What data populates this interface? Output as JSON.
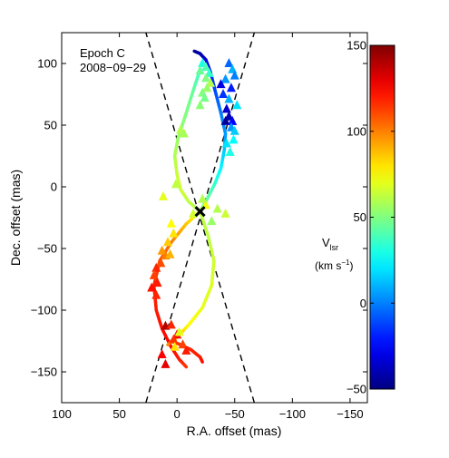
{
  "chart_data": {
    "type": "scatter",
    "annotation_lines": [
      "Epoch C",
      "2008−09−29"
    ],
    "xlabel": "R.A. offset (mas)",
    "ylabel": "Dec. offset (mas)",
    "x_axis_inverted": true,
    "xlim": [
      100,
      -165
    ],
    "ylim": [
      -175,
      125
    ],
    "xticks": [
      100,
      50,
      0,
      -50,
      -100,
      -150
    ],
    "xtick_labels": [
      "100",
      "50",
      "0",
      "−50",
      "−100",
      "−150"
    ],
    "yticks": [
      100,
      50,
      0,
      -50,
      -100,
      -150
    ],
    "ytick_labels": [
      "100",
      "50",
      "0",
      "−50",
      "−100",
      "−150"
    ],
    "grid": false,
    "colorbar": {
      "label_main": "V",
      "label_sub": "lsr",
      "unit_main": "(km s",
      "unit_exp": "−1",
      "unit_close": ")",
      "range": [
        -50,
        150
      ],
      "ticks": [
        150,
        100,
        50,
        0,
        -50
      ],
      "tick_labels": [
        "150",
        "100",
        "50",
        "0",
        "−50"
      ],
      "colormap": "jet"
    },
    "center": {
      "x": -20,
      "y": -20
    },
    "cone_lines": [
      {
        "x1": 27,
        "y1": -175,
        "x2": -67,
        "y2": 125
      },
      {
        "x1": -67,
        "y1": -175,
        "x2": 27,
        "y2": 125
      }
    ],
    "jet_tracks": [
      {
        "name": "track-blue-upper",
        "points": [
          {
            "x": -42,
            "y": 43,
            "v": 5
          },
          {
            "x": -38,
            "y": 60,
            "v": 0
          },
          {
            "x": -33,
            "y": 78,
            "v": -10
          },
          {
            "x": -29,
            "y": 93,
            "v": -20
          },
          {
            "x": -25,
            "y": 103,
            "v": -30
          },
          {
            "x": -20,
            "y": 108,
            "v": -40
          },
          {
            "x": -15,
            "y": 110,
            "v": -45
          }
        ]
      },
      {
        "name": "track-cyan-lower-right",
        "points": [
          {
            "x": -20,
            "y": -20,
            "v": 55
          },
          {
            "x": -26,
            "y": -10,
            "v": 45
          },
          {
            "x": -33,
            "y": 3,
            "v": 35
          },
          {
            "x": -38,
            "y": 15,
            "v": 25
          },
          {
            "x": -41,
            "y": 30,
            "v": 15
          },
          {
            "x": -42,
            "y": 43,
            "v": 5
          }
        ]
      },
      {
        "name": "track-left-upper",
        "points": [
          {
            "x": -20,
            "y": -20,
            "v": 60
          },
          {
            "x": -10,
            "y": -12,
            "v": 62
          },
          {
            "x": -3,
            "y": -2,
            "v": 65
          },
          {
            "x": 0,
            "y": 10,
            "v": 65
          },
          {
            "x": 2,
            "y": 25,
            "v": 60
          },
          {
            "x": -1,
            "y": 40,
            "v": 55
          },
          {
            "x": -8,
            "y": 60,
            "v": 50
          },
          {
            "x": -14,
            "y": 78,
            "v": 45
          },
          {
            "x": -19,
            "y": 92,
            "v": 38
          }
        ]
      },
      {
        "name": "track-red-lower-left",
        "points": [
          {
            "x": -20,
            "y": -20,
            "v": 70
          },
          {
            "x": -8,
            "y": -30,
            "v": 85
          },
          {
            "x": 5,
            "y": -45,
            "v": 100
          },
          {
            "x": 15,
            "y": -60,
            "v": 110
          },
          {
            "x": 20,
            "y": -80,
            "v": 118
          },
          {
            "x": 18,
            "y": -100,
            "v": 120
          },
          {
            "x": 13,
            "y": -115,
            "v": 122
          },
          {
            "x": 5,
            "y": -130,
            "v": 125
          },
          {
            "x": -2,
            "y": -140,
            "v": 120
          },
          {
            "x": -8,
            "y": -146,
            "v": 115
          }
        ]
      },
      {
        "name": "track-green-lower-right",
        "points": [
          {
            "x": -20,
            "y": -20,
            "v": 62
          },
          {
            "x": -27,
            "y": -40,
            "v": 62
          },
          {
            "x": -32,
            "y": -60,
            "v": 65
          },
          {
            "x": -30,
            "y": -80,
            "v": 68
          },
          {
            "x": -22,
            "y": -98,
            "v": 70
          },
          {
            "x": -10,
            "y": -112,
            "v": 75
          },
          {
            "x": 0,
            "y": -122,
            "v": 85
          },
          {
            "x": 8,
            "y": -128,
            "v": 100
          }
        ]
      },
      {
        "name": "track-tail-bottom",
        "points": [
          {
            "x": 5,
            "y": -125,
            "v": 110
          },
          {
            "x": -3,
            "y": -128,
            "v": 115
          },
          {
            "x": -12,
            "y": -132,
            "v": 118
          },
          {
            "x": -20,
            "y": -138,
            "v": 120
          },
          {
            "x": -22,
            "y": -142,
            "v": 122
          }
        ]
      }
    ],
    "maser_spots": [
      {
        "x": -45,
        "y": 100,
        "v": -5
      },
      {
        "x": -48,
        "y": 95,
        "v": 10
      },
      {
        "x": -50,
        "y": 90,
        "v": 0
      },
      {
        "x": -42,
        "y": 87,
        "v": 5
      },
      {
        "x": -47,
        "y": 80,
        "v": -20
      },
      {
        "x": -38,
        "y": 83,
        "v": -30
      },
      {
        "x": -40,
        "y": 75,
        "v": -15
      },
      {
        "x": -45,
        "y": 71,
        "v": 10
      },
      {
        "x": -52,
        "y": 66,
        "v": 20
      },
      {
        "x": -43,
        "y": 63,
        "v": -35
      },
      {
        "x": -45,
        "y": 57,
        "v": -40
      },
      {
        "x": -42,
        "y": 53,
        "v": -45
      },
      {
        "x": -48,
        "y": 53,
        "v": -25
      },
      {
        "x": -47,
        "y": 48,
        "v": 5
      },
      {
        "x": -50,
        "y": 45,
        "v": 15
      },
      {
        "x": -49,
        "y": 38,
        "v": 25
      },
      {
        "x": -43,
        "y": 35,
        "v": 20
      },
      {
        "x": -46,
        "y": 28,
        "v": 30
      },
      {
        "x": -22,
        "y": 100,
        "v": 30
      },
      {
        "x": -20,
        "y": 94,
        "v": 45
      },
      {
        "x": -25,
        "y": 97,
        "v": 40
      },
      {
        "x": -28,
        "y": 92,
        "v": 35
      },
      {
        "x": -25,
        "y": 88,
        "v": 50
      },
      {
        "x": -29,
        "y": 84,
        "v": 60
      },
      {
        "x": -26,
        "y": 80,
        "v": 55
      },
      {
        "x": -22,
        "y": 76,
        "v": 50
      },
      {
        "x": -24,
        "y": 72,
        "v": 48
      },
      {
        "x": -20,
        "y": 66,
        "v": 52
      },
      {
        "x": -3,
        "y": 46,
        "v": 60
      },
      {
        "x": -6,
        "y": 43,
        "v": 58
      },
      {
        "x": 1,
        "y": 2,
        "v": 62
      },
      {
        "x": 12,
        "y": -8,
        "v": 70
      },
      {
        "x": -25,
        "y": -15,
        "v": 72
      },
      {
        "x": -14,
        "y": -22,
        "v": 66
      },
      {
        "x": -22,
        "y": -10,
        "v": 60
      },
      {
        "x": -30,
        "y": -28,
        "v": 55
      },
      {
        "x": -35,
        "y": -18,
        "v": 60
      },
      {
        "x": -42,
        "y": -22,
        "v": 65
      },
      {
        "x": 5,
        "y": -30,
        "v": 75
      },
      {
        "x": 3,
        "y": -38,
        "v": 80
      },
      {
        "x": 8,
        "y": -45,
        "v": 85
      },
      {
        "x": 13,
        "y": -52,
        "v": 95
      },
      {
        "x": 10,
        "y": -56,
        "v": 100
      },
      {
        "x": 14,
        "y": -62,
        "v": 110
      },
      {
        "x": 18,
        "y": -66,
        "v": 118
      },
      {
        "x": 20,
        "y": -72,
        "v": 112
      },
      {
        "x": 17,
        "y": -78,
        "v": 120
      },
      {
        "x": 22,
        "y": -82,
        "v": 122
      },
      {
        "x": 18,
        "y": -88,
        "v": 118
      },
      {
        "x": 6,
        "y": -55,
        "v": 90
      },
      {
        "x": 10,
        "y": -113,
        "v": 140
      },
      {
        "x": 5,
        "y": -112,
        "v": 118
      },
      {
        "x": 0,
        "y": -120,
        "v": 125
      },
      {
        "x": 3,
        "y": -124,
        "v": 115
      },
      {
        "x": -5,
        "y": -128,
        "v": 112
      },
      {
        "x": -8,
        "y": -133,
        "v": 120
      },
      {
        "x": 2,
        "y": -130,
        "v": 80
      },
      {
        "x": -2,
        "y": -118,
        "v": 70
      },
      {
        "x": 13,
        "y": -136,
        "v": 125
      },
      {
        "x": 10,
        "y": -144,
        "v": 130
      }
    ]
  }
}
